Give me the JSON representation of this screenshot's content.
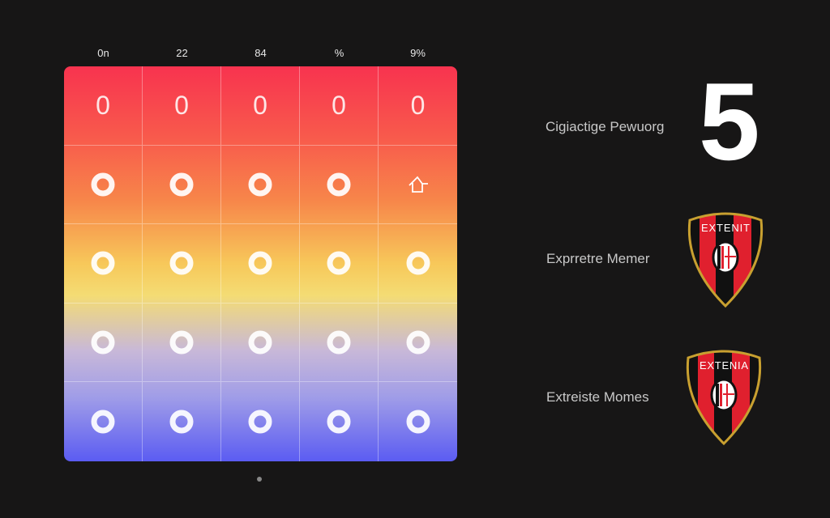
{
  "columns": [
    "0n",
    "22",
    "84",
    "%",
    "9%"
  ],
  "grid": {
    "rows": [
      {
        "type": "text",
        "cells": [
          "0",
          "0",
          "0",
          "0",
          "0"
        ]
      },
      {
        "type": "icon",
        "cells": [
          "ring-icon",
          "ring-icon",
          "ring-icon",
          "ring-icon",
          "house-icon"
        ]
      },
      {
        "type": "icon",
        "cells": [
          "ring-icon",
          "ring-icon",
          "ring-icon",
          "ring-icon",
          "ring-icon"
        ]
      },
      {
        "type": "icon",
        "cells": [
          "ring-icon",
          "ring-icon",
          "ring-icon",
          "ring-icon",
          "ring-icon"
        ]
      },
      {
        "type": "icon",
        "cells": [
          "ring-icon",
          "ring-icon",
          "ring-icon",
          "ring-icon",
          "ring-icon"
        ]
      }
    ]
  },
  "side": {
    "items": [
      {
        "label": "Cigiactige Pewuorg",
        "value": "5"
      },
      {
        "label": "Exprretre Memer",
        "crest_text": "EXTENIT"
      },
      {
        "label": "Extreiste Momes",
        "crest_text": "EXTENIA"
      }
    ]
  },
  "colors": {
    "background": "#171616",
    "grid_top": "#f8334f",
    "grid_mid": "#f4dc74",
    "grid_bottom": "#5b5cf2",
    "crest_red": "#e0202e",
    "crest_gold": "#c8a030"
  }
}
